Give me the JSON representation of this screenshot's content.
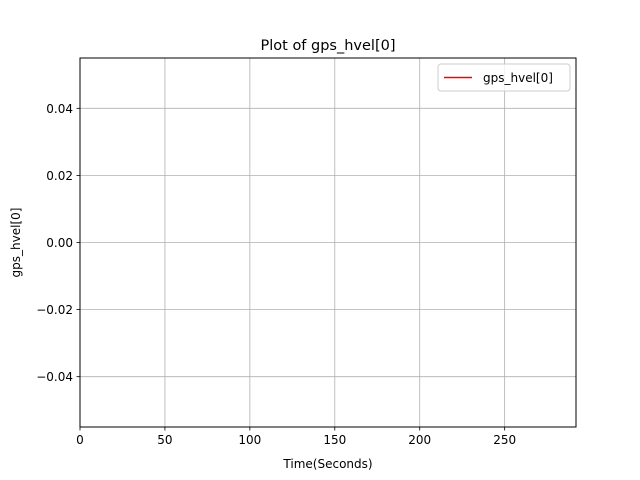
{
  "chart_data": {
    "type": "line",
    "title": "Plot of gps_hvel[0]",
    "xlabel": "Time(Seconds)",
    "ylabel": "gps_hvel[0]",
    "xlim": [
      0,
      292
    ],
    "ylim": [
      -0.055,
      0.055
    ],
    "x_ticks": [
      0,
      50,
      100,
      150,
      200,
      250
    ],
    "x_tick_labels": [
      "0",
      "50",
      "100",
      "150",
      "200",
      "250"
    ],
    "y_ticks": [
      -0.04,
      -0.02,
      0.0,
      0.02,
      0.04
    ],
    "y_tick_labels": [
      "−0.04",
      "−0.02",
      "0.00",
      "0.02",
      "0.04"
    ],
    "grid": true,
    "legend_position": "top-right",
    "series": [
      {
        "name": "gps_hvel[0]",
        "color": "#ff0000",
        "x": [],
        "y": []
      }
    ]
  }
}
